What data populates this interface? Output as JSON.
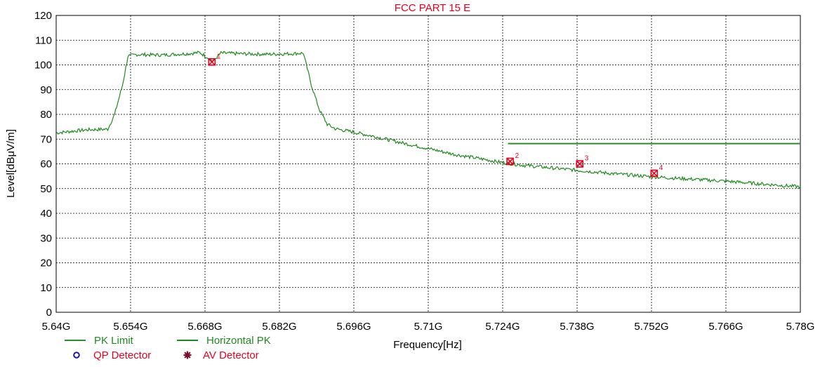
{
  "chart_data": {
    "type": "line",
    "title": "FCC PART 15 E",
    "xlabel": "Frequency[Hz]",
    "ylabel": "Level[dBμV/m]",
    "xlim": [
      5.64,
      5.78
    ],
    "ylim": [
      0,
      120
    ],
    "x_ticks": [
      5.64,
      5.654,
      5.668,
      5.682,
      5.696,
      5.71,
      5.724,
      5.738,
      5.752,
      5.766,
      5.78
    ],
    "x_tick_labels": [
      "5.64G",
      "5.654G",
      "5.668G",
      "5.682G",
      "5.696G",
      "5.71G",
      "5.724G",
      "5.738G",
      "5.752G",
      "5.766G",
      "5.78G"
    ],
    "y_ticks": [
      0,
      10,
      20,
      30,
      40,
      50,
      60,
      70,
      80,
      90,
      100,
      110,
      120
    ],
    "y_tick_labels": [
      "0",
      "10",
      "20",
      "30",
      "40",
      "50",
      "60",
      "70",
      "80",
      "90",
      "100",
      "110",
      "120"
    ],
    "grid": true,
    "legend_placement": "bottom-left",
    "series": [
      {
        "name": "PK Limit",
        "color": "#2e8b2e",
        "x": [
          5.725,
          5.78
        ],
        "values": [
          68.2,
          68.2
        ]
      },
      {
        "name": "Horizontal PK",
        "color": "#1f8a1f",
        "x": [
          5.64,
          5.643,
          5.646,
          5.6497,
          5.651,
          5.6525,
          5.6535,
          5.655,
          5.66,
          5.665,
          5.667,
          5.6685,
          5.6695,
          5.671,
          5.675,
          5.68,
          5.685,
          5.6865,
          5.688,
          5.6895,
          5.691,
          5.6925,
          5.696,
          5.7,
          5.705,
          5.71,
          5.715,
          5.72,
          5.724,
          5.728,
          5.732,
          5.738,
          5.745,
          5.752,
          5.758,
          5.766,
          5.772,
          5.78
        ],
        "values": [
          72.5,
          73.2,
          73.8,
          74.0,
          80,
          92,
          103.5,
          104.2,
          104.0,
          104.6,
          105.0,
          103.0,
          101.5,
          104.8,
          104.5,
          104.3,
          104.6,
          104.8,
          92,
          82,
          76,
          74.2,
          72.8,
          71.0,
          68.5,
          66.2,
          63.8,
          62.0,
          60.5,
          59.4,
          58.6,
          57.4,
          56.0,
          54.8,
          54.0,
          53.0,
          52.0,
          50.7
        ]
      }
    ],
    "markers": [
      {
        "id": "1",
        "x": 5.6693,
        "value": 101.2
      },
      {
        "id": "2",
        "x": 5.7254,
        "value": 61.0
      },
      {
        "id": "3",
        "x": 5.7385,
        "value": 60.0
      },
      {
        "id": "4",
        "x": 5.7525,
        "value": 56.2
      }
    ],
    "legend": [
      {
        "label": "PK Limit",
        "symbol": "line",
        "color": "#2e8b2e",
        "text_color": "#1f8a1f"
      },
      {
        "label": "Horizontal PK",
        "symbol": "line",
        "color": "#1f8a1f",
        "text_color": "#1f8a1f"
      },
      {
        "label": "QP Detector",
        "symbol": "circle",
        "color": "#1a1aa0",
        "text_color": "#e8001e"
      },
      {
        "label": "AV Detector",
        "symbol": "star",
        "color": "#7a1030",
        "text_color": "#e8001e"
      }
    ]
  }
}
